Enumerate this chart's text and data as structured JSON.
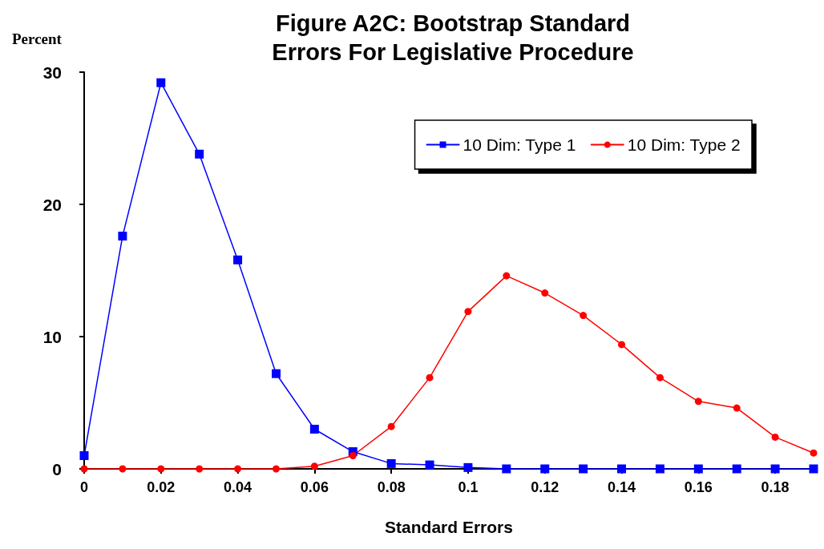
{
  "chart_data": {
    "type": "line",
    "title": "Figure A2C: Bootstrap Standard\nErrors For Legislative Procedure",
    "xlabel": "Standard Errors",
    "ylabel": "Percent",
    "x": [
      0,
      0.01,
      0.02,
      0.03,
      0.04,
      0.05,
      0.06,
      0.07,
      0.08,
      0.09,
      0.1,
      0.11,
      0.12,
      0.13,
      0.14,
      0.15,
      0.16,
      0.17,
      0.18,
      0.19
    ],
    "series": [
      {
        "name": "10 Dim: Type 1",
        "color": "#0000ff",
        "marker": "square",
        "values": [
          1.0,
          17.6,
          29.2,
          23.8,
          15.8,
          7.2,
          3.0,
          1.3,
          0.4,
          0.3,
          0.1,
          0,
          0,
          0,
          0,
          0,
          0,
          0,
          0,
          0
        ]
      },
      {
        "name": "10 Dim: Type 2",
        "color": "#ff0000",
        "marker": "circle",
        "values": [
          0,
          0,
          0,
          0,
          0,
          0,
          0.2,
          1.0,
          3.2,
          6.9,
          11.9,
          14.6,
          13.3,
          11.6,
          9.4,
          6.9,
          5.1,
          4.6,
          2.4,
          1.2
        ]
      }
    ],
    "xlim": [
      0,
      0.19
    ],
    "xticks": [
      0,
      0.02,
      0.04,
      0.06,
      0.08,
      0.1,
      0.12,
      0.14,
      0.16,
      0.18
    ],
    "ylim": [
      0,
      30
    ],
    "yticks": [
      0,
      10,
      20,
      30
    ],
    "grid": false,
    "legend": "top right",
    "line_style": "solid"
  }
}
